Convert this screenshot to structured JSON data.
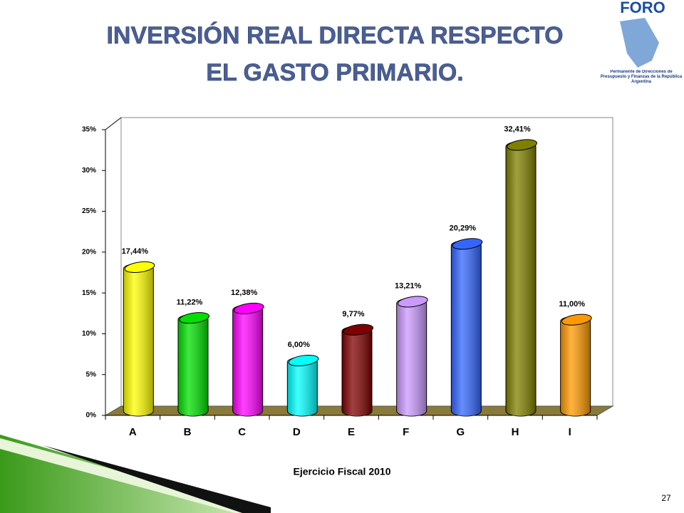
{
  "chart_data": {
    "type": "bar",
    "title": "INVERSIÓN REAL DIRECTA RESPECTO EL GASTO PRIMARIO.",
    "x_label": "Ejercicio Fiscal 2010",
    "categories": [
      "A",
      "B",
      "C",
      "D",
      "E",
      "F",
      "G",
      "H",
      "I"
    ],
    "values": [
      17.44,
      11.22,
      12.38,
      6.0,
      9.77,
      13.21,
      20.29,
      32.41,
      11.0
    ],
    "value_labels": [
      "17,44%",
      "11,22%",
      "12,38%",
      "6,00%",
      "9,77%",
      "13,21%",
      "20,29%",
      "32,41%",
      "11,00%"
    ],
    "colors": [
      "#ffff00",
      "#00e000",
      "#ff00ff",
      "#00ffff",
      "#800000",
      "#cc99ff",
      "#3366ff",
      "#808000",
      "#ff9900"
    ],
    "ylim": [
      0,
      35
    ],
    "yticks": [
      {
        "value": 0,
        "label": "0%"
      },
      {
        "value": 5,
        "label": "5%"
      },
      {
        "value": 10,
        "label": "10%"
      },
      {
        "value": 15,
        "label": "15%"
      },
      {
        "value": 20,
        "label": "20%"
      },
      {
        "value": 25,
        "label": "25%"
      },
      {
        "value": 30,
        "label": "30%"
      },
      {
        "value": 35,
        "label": "35%"
      }
    ]
  },
  "logo": {
    "name": "FORO",
    "caption": "Permanente de Direcciones de Presupuesto y Finanzas de la República Argentina"
  },
  "page_number": "27"
}
